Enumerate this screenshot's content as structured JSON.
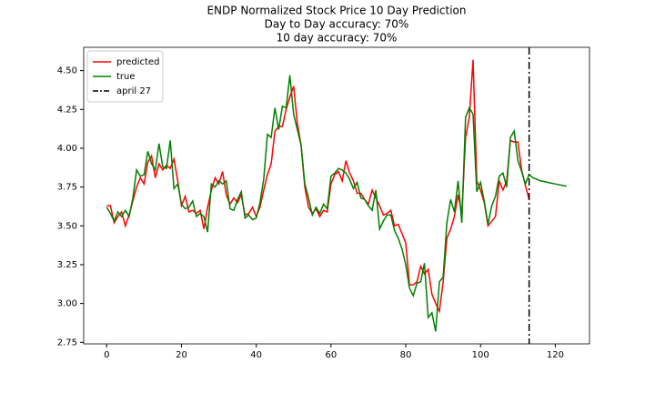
{
  "chart_data": {
    "type": "line",
    "title": "ENDP Normalized Stock Price 10 Day Prediction",
    "subtitle": [
      "Day to Day accuracy: 70%",
      "10 day accuracy: 70%"
    ],
    "x": [
      0,
      1,
      2,
      3,
      4,
      5,
      6,
      7,
      8,
      9,
      10,
      11,
      12,
      13,
      14,
      15,
      16,
      17,
      18,
      19,
      20,
      21,
      22,
      23,
      24,
      25,
      26,
      27,
      28,
      29,
      30,
      31,
      32,
      33,
      34,
      35,
      36,
      37,
      38,
      39,
      40,
      41,
      42,
      43,
      44,
      45,
      46,
      47,
      48,
      49,
      50,
      51,
      52,
      53,
      54,
      55,
      56,
      57,
      58,
      59,
      60,
      61,
      62,
      63,
      64,
      65,
      66,
      67,
      68,
      69,
      70,
      71,
      72,
      73,
      74,
      75,
      76,
      77,
      78,
      79,
      80,
      81,
      82,
      83,
      84,
      85,
      86,
      87,
      88,
      89,
      90,
      91,
      92,
      93,
      94,
      95,
      96,
      97,
      98,
      99,
      100,
      101,
      102,
      103,
      104,
      105,
      106,
      107,
      108,
      109,
      110,
      111,
      112,
      113,
      114,
      115,
      116,
      117,
      118,
      119,
      120,
      121,
      122,
      123
    ],
    "series": [
      {
        "name": "predicted",
        "color": "#ff0000",
        "values": [
          3.63,
          3.63,
          3.52,
          3.56,
          3.59,
          3.5,
          3.57,
          3.66,
          3.75,
          3.81,
          3.77,
          3.91,
          3.95,
          3.81,
          3.9,
          3.86,
          3.89,
          3.87,
          3.93,
          3.79,
          3.63,
          3.69,
          3.59,
          3.6,
          3.58,
          3.6,
          3.48,
          3.62,
          3.73,
          3.81,
          3.77,
          3.85,
          3.7,
          3.64,
          3.68,
          3.65,
          3.7,
          3.57,
          3.58,
          3.62,
          3.56,
          3.62,
          3.73,
          3.83,
          3.9,
          4.11,
          4.14,
          4.14,
          4.25,
          4.33,
          4.4,
          4.16,
          4.02,
          3.75,
          3.62,
          3.58,
          3.61,
          3.56,
          3.6,
          3.59,
          3.77,
          3.83,
          3.85,
          3.79,
          3.92,
          3.84,
          3.79,
          3.71,
          3.71,
          3.67,
          3.64,
          3.73,
          3.68,
          3.63,
          3.57,
          3.58,
          3.6,
          3.5,
          3.51,
          3.45,
          3.39,
          3.12,
          3.12,
          3.14,
          3.24,
          3.19,
          3.22,
          3.06,
          3.0,
          2.95,
          3.14,
          3.42,
          3.48,
          3.56,
          3.7,
          3.58,
          4.07,
          4.2,
          4.57,
          3.79,
          3.73,
          3.65,
          3.5,
          3.53,
          3.56,
          3.79,
          3.73,
          3.79,
          4.05,
          4.04,
          4.04,
          3.86,
          3.76,
          3.67,
          null,
          null,
          null,
          null,
          null,
          null,
          null,
          null,
          null,
          null
        ]
      },
      {
        "name": "true",
        "color": "#008000",
        "values": [
          3.62,
          3.58,
          3.53,
          3.59,
          3.56,
          3.6,
          3.56,
          3.68,
          3.86,
          3.82,
          3.83,
          3.98,
          3.9,
          3.86,
          4.03,
          3.88,
          3.87,
          4.05,
          3.74,
          3.77,
          3.64,
          3.61,
          3.62,
          3.66,
          3.56,
          3.58,
          3.56,
          3.46,
          3.77,
          3.75,
          3.79,
          3.77,
          3.79,
          3.61,
          3.6,
          3.67,
          3.72,
          3.55,
          3.57,
          3.54,
          3.55,
          3.65,
          3.8,
          4.09,
          4.07,
          4.26,
          4.12,
          4.27,
          4.26,
          4.47,
          4.22,
          4.12,
          4.02,
          3.77,
          3.68,
          3.57,
          3.62,
          3.58,
          3.64,
          3.61,
          3.82,
          3.84,
          3.87,
          3.86,
          3.84,
          3.8,
          3.74,
          3.78,
          3.68,
          3.67,
          3.63,
          3.6,
          3.73,
          3.48,
          3.53,
          3.57,
          3.57,
          3.47,
          3.42,
          3.35,
          3.25,
          3.1,
          3.05,
          3.13,
          3.14,
          3.26,
          2.91,
          2.94,
          2.82,
          3.14,
          3.17,
          3.52,
          3.67,
          3.59,
          3.79,
          3.52,
          4.2,
          4.26,
          4.22,
          3.72,
          3.78,
          3.66,
          3.51,
          3.63,
          3.69,
          3.82,
          3.84,
          3.75,
          4.07,
          4.11,
          3.92,
          3.85,
          3.77,
          3.83,
          3.81,
          3.8,
          3.79,
          3.785,
          3.78,
          3.775,
          3.77,
          3.765,
          3.76,
          3.755
        ]
      }
    ],
    "vline": {
      "x": 113,
      "name": "april 27",
      "color": "#000000"
    },
    "xlim": [
      -6.15,
      129.15
    ],
    "ylim": [
      2.74,
      4.65
    ],
    "xticks": [
      0,
      20,
      40,
      60,
      80,
      100,
      120
    ],
    "yticks": [
      2.75,
      {
        "value": 3.0,
        "label": "3.00"
      },
      3.25,
      {
        "value": 3.5,
        "label": "3.50"
      },
      3.75,
      {
        "value": 4.0,
        "label": "4.00"
      },
      4.25,
      {
        "value": 4.5,
        "label": "4.50"
      }
    ],
    "legend": "upper left"
  }
}
